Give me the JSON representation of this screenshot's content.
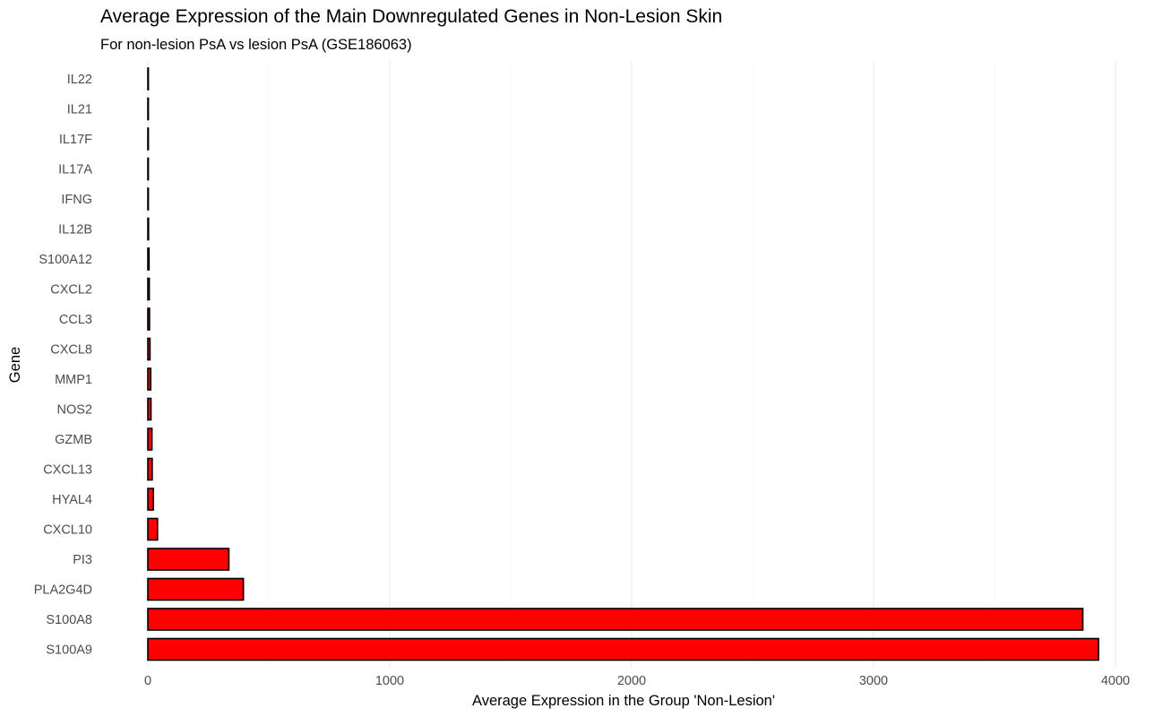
{
  "chart_data": {
    "type": "bar",
    "orientation": "horizontal",
    "title": "Average Expression of the Main Downregulated Genes in Non-Lesion Skin",
    "subtitle": "For non-lesion PsA vs lesion PsA (GSE186063)",
    "xlabel": "Average Expression in the Group 'Non-Lesion'",
    "ylabel": "Gene",
    "xlim": [
      0,
      4000
    ],
    "xticks": [
      0,
      1000,
      2000,
      3000,
      4000
    ],
    "grid": true,
    "legend": "none",
    "bar_fill": "#ff0000",
    "bar_outline": "#000000",
    "categories": [
      "IL22",
      "IL21",
      "IL17F",
      "IL17A",
      "IFNG",
      "IL12B",
      "S100A12",
      "CXCL2",
      "CCL3",
      "CXCL8",
      "MMP1",
      "NOS2",
      "GZMB",
      "CXCL13",
      "HYAL4",
      "CXCL10",
      "PI3",
      "PLA2G4D",
      "S100A8",
      "S100A9"
    ],
    "values": [
      1,
      1,
      1,
      1,
      2,
      3,
      5,
      6,
      7,
      9,
      12,
      13,
      17,
      18,
      23,
      40,
      335,
      395,
      3865,
      3930
    ]
  }
}
